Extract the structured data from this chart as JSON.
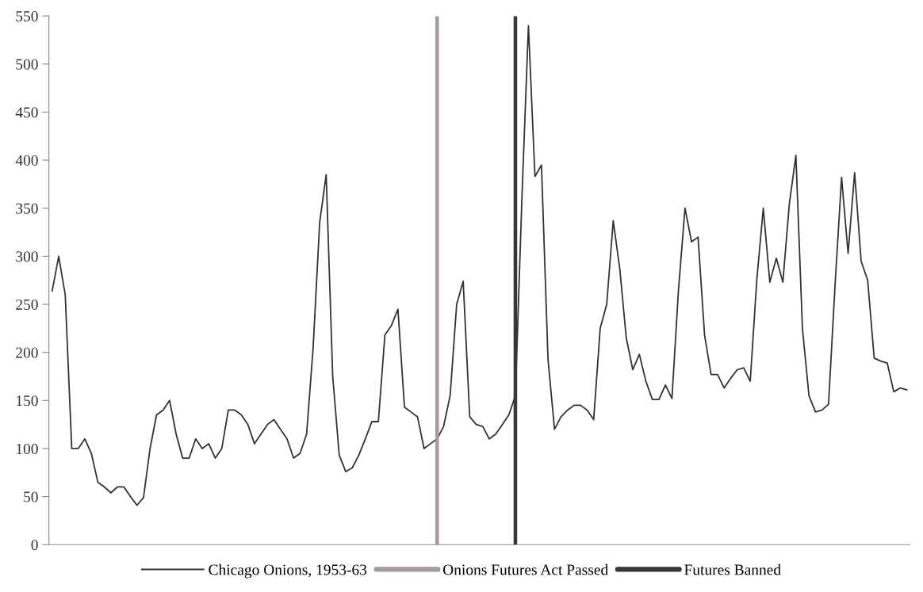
{
  "chart_data": {
    "type": "line",
    "categories": [
      null,
      null,
      null,
      null,
      null,
      null,
      null,
      null,
      null,
      null,
      null,
      null,
      null,
      null,
      null,
      null,
      null,
      null,
      null,
      null,
      null,
      null,
      null,
      null,
      null,
      null,
      null,
      null,
      null,
      null,
      null,
      null,
      null,
      null,
      null,
      null,
      null,
      null,
      null,
      null,
      null,
      null,
      null,
      null,
      null,
      null,
      null,
      null,
      null,
      null,
      null,
      null,
      null,
      null,
      null,
      null,
      null,
      null,
      null,
      null,
      null,
      null,
      null,
      null,
      null,
      null,
      null,
      null,
      null,
      null,
      null,
      null,
      null,
      null,
      null,
      null,
      null,
      null,
      null,
      null,
      null,
      null,
      null,
      null,
      null,
      null,
      null,
      null,
      null,
      null,
      null,
      null,
      null,
      null,
      null,
      null,
      null,
      null,
      null,
      null,
      null,
      null,
      null,
      null,
      null,
      null,
      null,
      null,
      null,
      null,
      null,
      null,
      null,
      null,
      null,
      null,
      null,
      null,
      null,
      null,
      null,
      null,
      null,
      null,
      null,
      null,
      null,
      null,
      null,
      null,
      null,
      null
    ],
    "series": [
      {
        "name": "Chicago Onions, 1953-63",
        "color": "#333333",
        "values": [
          264,
          300,
          260,
          100,
          100,
          110,
          95,
          65,
          60,
          54,
          60,
          60,
          50,
          41,
          49,
          100,
          135,
          140,
          150,
          115,
          90,
          90,
          110,
          100,
          105,
          90,
          100,
          140,
          140,
          135,
          125,
          105,
          115,
          125,
          130,
          120,
          110,
          90,
          95,
          115,
          205,
          335,
          385,
          175,
          93,
          76,
          80,
          93,
          110,
          128,
          128,
          218,
          228,
          245,
          143,
          138,
          133,
          100,
          105,
          110,
          123,
          155,
          250,
          274,
          133,
          125,
          123,
          110,
          115,
          125,
          135,
          155,
          360,
          540,
          383,
          395,
          193,
          120,
          133,
          140,
          145,
          145,
          140,
          130,
          225,
          250,
          337,
          287,
          215,
          182,
          198,
          170,
          151,
          151,
          166,
          152,
          265,
          350,
          315,
          320,
          218,
          177,
          177,
          163,
          173,
          182,
          184,
          170,
          275,
          350,
          273,
          298,
          273,
          355,
          405,
          225,
          155,
          138,
          140,
          146,
          270,
          382,
          303,
          387,
          295,
          275,
          194,
          191,
          189,
          159,
          163,
          161
        ]
      },
      {
        "name": "Onions Futures Act Passed",
        "type": "bar",
        "color": "#a59a96",
        "values": [
          null,
          null,
          null,
          null,
          null,
          null,
          null,
          null,
          null,
          null,
          null,
          null,
          null,
          null,
          null,
          null,
          null,
          null,
          null,
          null,
          null,
          null,
          null,
          null,
          null,
          null,
          null,
          null,
          null,
          null,
          null,
          null,
          null,
          null,
          null,
          null,
          null,
          null,
          null,
          null,
          null,
          null,
          null,
          null,
          null,
          null,
          null,
          null,
          null,
          null,
          null,
          null,
          null,
          null,
          null,
          null,
          null,
          null,
          null,
          550,
          null,
          null,
          null,
          null,
          null,
          null,
          null,
          null,
          null,
          null,
          null,
          null,
          null,
          null,
          null,
          null,
          null,
          null,
          null,
          null,
          null,
          null,
          null,
          null,
          null,
          null,
          null,
          null,
          null,
          null,
          null,
          null,
          null,
          null,
          null,
          null,
          null,
          null,
          null,
          null,
          null,
          null,
          null,
          null,
          null,
          null,
          null,
          null,
          null,
          null,
          null,
          null,
          null,
          null,
          null,
          null,
          null,
          null,
          null,
          null,
          null,
          null,
          null,
          null,
          null,
          null,
          null,
          null,
          null,
          null,
          null,
          null
        ]
      },
      {
        "name": "Futures Banned",
        "type": "bar",
        "color": "#36363c",
        "values": [
          null,
          null,
          null,
          null,
          null,
          null,
          null,
          null,
          null,
          null,
          null,
          null,
          null,
          null,
          null,
          null,
          null,
          null,
          null,
          null,
          null,
          null,
          null,
          null,
          null,
          null,
          null,
          null,
          null,
          null,
          null,
          null,
          null,
          null,
          null,
          null,
          null,
          null,
          null,
          null,
          null,
          null,
          null,
          null,
          null,
          null,
          null,
          null,
          null,
          null,
          null,
          null,
          null,
          null,
          null,
          null,
          null,
          null,
          null,
          null,
          null,
          null,
          null,
          null,
          null,
          null,
          null,
          null,
          null,
          null,
          null,
          550,
          null,
          null,
          null,
          null,
          null,
          null,
          null,
          null,
          null,
          null,
          null,
          null,
          null,
          null,
          null,
          null,
          null,
          null,
          null,
          null,
          null,
          null,
          null,
          null,
          null,
          null,
          null,
          null,
          null,
          null,
          null,
          null,
          null,
          null,
          null,
          null,
          null,
          null,
          null,
          null,
          null,
          null,
          null,
          null,
          null,
          null,
          null,
          null,
          null,
          null,
          null,
          null,
          null,
          null,
          null,
          null,
          null,
          null,
          null,
          null
        ]
      }
    ],
    "ylim": [
      0,
      550
    ],
    "yticks": [
      0,
      50,
      100,
      150,
      200,
      250,
      300,
      350,
      400,
      450,
      500,
      550
    ],
    "grid": false,
    "legend": "bottom",
    "tick_labels": "y"
  }
}
